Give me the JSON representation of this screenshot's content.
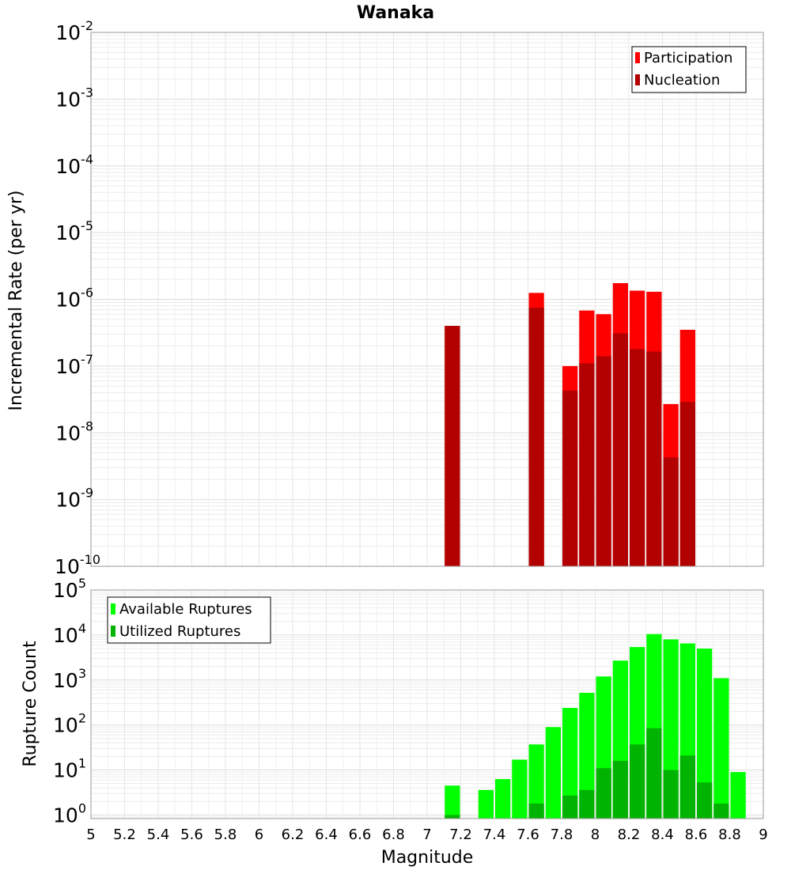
{
  "chart_data": [
    {
      "type": "bar",
      "title": "Wanaka",
      "xlabel": "",
      "ylabel": "Incremental Rate (per yr)",
      "yscale": "log",
      "ylim_exponents": [
        -10,
        -2
      ],
      "y_tick_exponents": [
        -10,
        -9,
        -8,
        -7,
        -6,
        -5,
        -4,
        -3,
        -2
      ],
      "xlim": [
        5,
        9
      ],
      "legend_position": "top-right",
      "legend": [
        "Participation",
        "Nucleation"
      ],
      "colors": {
        "Participation": "#ff0000",
        "Nucleation": "#b30000"
      },
      "bar_width": 0.1,
      "x": [
        7.15,
        7.65,
        7.85,
        7.95,
        8.05,
        8.15,
        8.25,
        8.35,
        8.45,
        8.55
      ],
      "series": [
        {
          "name": "Participation",
          "values": [
            4e-07,
            1.25e-06,
            1e-07,
            6.8e-07,
            6e-07,
            1.75e-06,
            1.35e-06,
            1.3e-06,
            2.7e-08,
            3.5e-07
          ]
        },
        {
          "name": "Nucleation",
          "values": [
            4e-07,
            7.5e-07,
            4.3e-08,
            1.1e-07,
            1.4e-07,
            3.1e-07,
            1.8e-07,
            1.65e-07,
            4.3e-09,
            2.9e-08
          ]
        }
      ]
    },
    {
      "type": "bar",
      "title": "",
      "xlabel": "Magnitude",
      "ylabel": "Rupture Count",
      "yscale": "log",
      "ylim_exponents": [
        -0.08,
        5
      ],
      "y_tick_exponents": [
        0,
        1,
        2,
        3,
        4,
        5
      ],
      "xlim": [
        5,
        9
      ],
      "x_ticks": [
        "5",
        "5.2",
        "5.4",
        "5.6",
        "5.8",
        "6",
        "6.2",
        "6.4",
        "6.6",
        "6.8",
        "7",
        "7.2",
        "7.4",
        "7.6",
        "7.8",
        "8",
        "8.2",
        "8.4",
        "8.6",
        "8.8",
        "9"
      ],
      "legend_position": "top-left",
      "legend": [
        "Available Ruptures",
        "Utilized Ruptures"
      ],
      "colors": {
        "Available Ruptures": "#00ff00",
        "Utilized Ruptures": "#00b300"
      },
      "bar_width": 0.1,
      "x": [
        7.15,
        7.35,
        7.45,
        7.55,
        7.65,
        7.75,
        7.85,
        7.95,
        8.05,
        8.15,
        8.25,
        8.35,
        8.45,
        8.55,
        8.65,
        8.75,
        8.85
      ],
      "series": [
        {
          "name": "Available Ruptures",
          "values": [
            4.5,
            3.6,
            6.3,
            17,
            37,
            90,
            240,
            520,
            1200,
            2700,
            5400,
            10500,
            8000,
            6500,
            5000,
            1100,
            9
          ]
        },
        {
          "name": "Utilized Ruptures",
          "values": [
            1.0,
            null,
            null,
            null,
            1.8,
            null,
            2.7,
            3.6,
            11,
            16,
            37,
            85,
            10,
            21,
            5.3,
            1.8,
            null
          ]
        }
      ]
    }
  ]
}
